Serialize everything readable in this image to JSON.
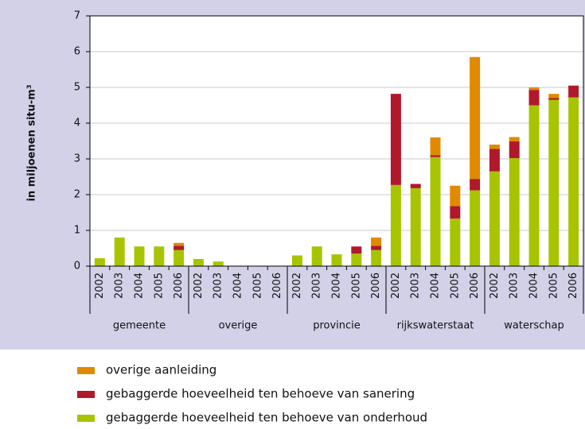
{
  "chart_data": {
    "type": "stacked_bar",
    "y_label": "in miljoenen situ-m³",
    "groups": [
      "gemeente",
      "overige",
      "provincie",
      "rijkswaterstaat",
      "waterschap"
    ],
    "categories": [
      "2002",
      "2003",
      "2004",
      "2005",
      "2006",
      "2002",
      "2003",
      "2004",
      "2005",
      "2006",
      "2002",
      "2003",
      "2004",
      "2005",
      "2006",
      "2002",
      "2003",
      "2004",
      "2005",
      "2006",
      "2002",
      "2003",
      "2004",
      "2005",
      "2006"
    ],
    "series": [
      {
        "name": "gebaggerde hoeveelheid ten behoeve van onderhoud",
        "color": "#a8c400",
        "values": [
          0.22,
          0.8,
          0.55,
          0.55,
          0.45,
          0.2,
          0.13,
          0,
          0,
          0,
          0.3,
          0.55,
          0.33,
          0.35,
          0.45,
          2.27,
          2.18,
          3.05,
          1.33,
          2.12,
          2.65,
          3.02,
          4.5,
          4.65,
          4.72
        ]
      },
      {
        "name": "gebaggerde hoeveelheid ten behoeve van sanering",
        "color": "#b0192b",
        "values": [
          0,
          0,
          0,
          0,
          0.12,
          0,
          0,
          0,
          0,
          0,
          0,
          0,
          0,
          0.2,
          0.12,
          2.55,
          0.12,
          0.05,
          0.35,
          0.32,
          0.63,
          0.47,
          0.43,
          0.05,
          0.33
        ]
      },
      {
        "name": "overige aanleiding",
        "color": "#e08a00",
        "values": [
          0,
          0,
          0,
          0,
          0.08,
          0,
          0,
          0,
          0,
          0,
          0,
          0,
          0,
          0,
          0.23,
          0,
          0,
          0.5,
          0.57,
          3.41,
          0.12,
          0.12,
          0.07,
          0.12,
          0
        ]
      }
    ],
    "ylim": [
      0,
      7
    ],
    "yticks": [
      0,
      1,
      2,
      3,
      4,
      5,
      6,
      7
    ],
    "grid": true
  }
}
